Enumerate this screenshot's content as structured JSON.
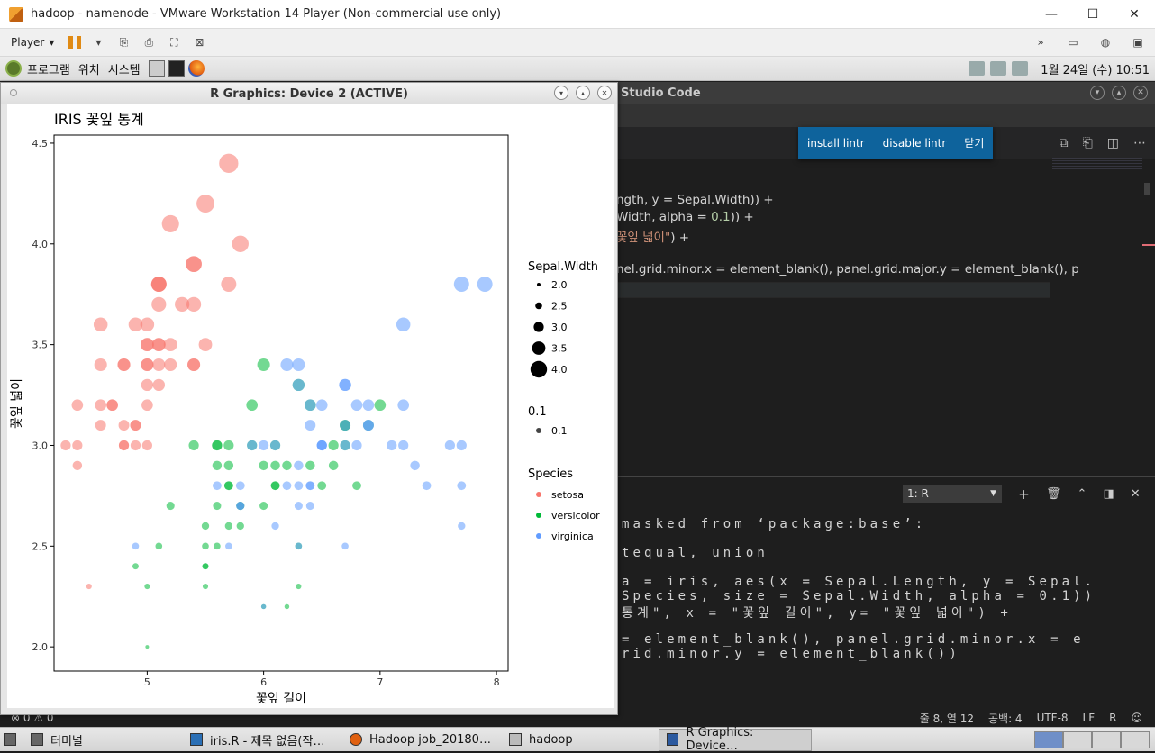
{
  "vmware": {
    "title": "hadoop - namenode - VMware Workstation 14 Player (Non-commercial use only)",
    "player_menu": "Player"
  },
  "gnome_panel": {
    "menus": [
      "프로그램",
      "위치",
      "시스템"
    ],
    "clock": "1월 24일 (수) 10:51"
  },
  "vscode": {
    "title": "Studio Code",
    "notification": [
      "install lintr",
      "disable lintr",
      "닫기"
    ],
    "code": {
      "line1": "ngth, y = Sepal.Width)) +",
      "line2_a": "Width, alpha = ",
      "line2_num": "0.1",
      "line2_b": ")) +",
      "line3_str": "꽃잎 넓이\"",
      "line3_b": ") +",
      "line4": "nel.grid.minor.x = element_blank(), panel.grid.major.y = element_blank(), p"
    },
    "terminal": {
      "selector": "1: R",
      "lines": [
        "masked from ‘package:base’:",
        "tequal, union",
        "a = iris, aes(x = Sepal.Length, y = Sepal.",
        "Species, size = Sepal.Width, alpha = 0.1))",
        "통계\", x = \"꽃잎 길이\", y= \"꽃잎 넓이\") +",
        "= element_blank(), panel.grid.minor.x = e",
        "rid.minor.y = element_blank())"
      ]
    },
    "status": {
      "problems": "⊗ 0 ⚠ 0",
      "position": "줄 8, 열 12",
      "spaces": "공백: 4",
      "encoding": "UTF-8",
      "eol": "LF",
      "language": "R"
    }
  },
  "taskbar": {
    "items": [
      {
        "label": "터미널"
      },
      {
        "label": "iris.R - 제목 없음(작…"
      },
      {
        "label": "Hadoop job_20180…"
      },
      {
        "label": "hadoop"
      },
      {
        "label": "R Graphics: Device…"
      }
    ]
  },
  "rwin": {
    "title": "R Graphics: Device 2 (ACTIVE)"
  },
  "chart_data": {
    "type": "scatter",
    "title": "IRIS 꽃잎 통계",
    "xlabel": "꽃잎 길이",
    "ylabel": "꽃잎 넓이",
    "xlim": [
      4.2,
      8.1
    ],
    "ylim": [
      1.88,
      4.54
    ],
    "xticks": [
      5,
      6,
      7,
      8
    ],
    "yticks": [
      2.0,
      2.5,
      3.0,
      3.5,
      4.0,
      4.5
    ],
    "ytick_labels": [
      "2.0",
      "2.5",
      "3.0",
      "3.5",
      "4.0",
      "4.5"
    ],
    "grid": false,
    "size_legend": {
      "title": "Sepal.Width",
      "labels": [
        "2.0",
        "2.5",
        "3.0",
        "3.5",
        "4.0"
      ]
    },
    "alpha_legend": {
      "title": "0.1",
      "labels": [
        "0.1"
      ]
    },
    "legend_title": "Species",
    "series": [
      {
        "name": "setosa",
        "color": "#F8766D",
        "points": [
          [
            5.1,
            3.5
          ],
          [
            4.9,
            3.0
          ],
          [
            4.7,
            3.2
          ],
          [
            4.6,
            3.1
          ],
          [
            5.0,
            3.6
          ],
          [
            5.4,
            3.9
          ],
          [
            4.6,
            3.4
          ],
          [
            5.0,
            3.4
          ],
          [
            4.4,
            2.9
          ],
          [
            4.9,
            3.1
          ],
          [
            5.4,
            3.7
          ],
          [
            4.8,
            3.4
          ],
          [
            4.8,
            3.0
          ],
          [
            4.3,
            3.0
          ],
          [
            5.8,
            4.0
          ],
          [
            5.7,
            4.4
          ],
          [
            5.4,
            3.9
          ],
          [
            5.1,
            3.5
          ],
          [
            5.7,
            3.8
          ],
          [
            5.1,
            3.8
          ],
          [
            5.4,
            3.4
          ],
          [
            5.1,
            3.7
          ],
          [
            4.6,
            3.6
          ],
          [
            5.1,
            3.3
          ],
          [
            4.8,
            3.4
          ],
          [
            5.0,
            3.0
          ],
          [
            5.0,
            3.4
          ],
          [
            5.2,
            3.5
          ],
          [
            5.2,
            3.4
          ],
          [
            4.7,
            3.2
          ],
          [
            4.8,
            3.1
          ],
          [
            5.4,
            3.4
          ],
          [
            5.2,
            4.1
          ],
          [
            5.5,
            4.2
          ],
          [
            4.9,
            3.1
          ],
          [
            5.0,
            3.2
          ],
          [
            5.5,
            3.5
          ],
          [
            4.9,
            3.6
          ],
          [
            4.4,
            3.0
          ],
          [
            5.1,
            3.4
          ],
          [
            5.0,
            3.5
          ],
          [
            4.5,
            2.3
          ],
          [
            4.4,
            3.2
          ],
          [
            5.0,
            3.5
          ],
          [
            5.1,
            3.8
          ],
          [
            4.8,
            3.0
          ],
          [
            5.1,
            3.8
          ],
          [
            4.6,
            3.2
          ],
          [
            5.3,
            3.7
          ],
          [
            5.0,
            3.3
          ]
        ]
      },
      {
        "name": "versicolor",
        "color": "#00BA38",
        "points": [
          [
            7.0,
            3.2
          ],
          [
            6.4,
            3.2
          ],
          [
            6.9,
            3.1
          ],
          [
            5.5,
            2.3
          ],
          [
            6.5,
            2.8
          ],
          [
            5.7,
            2.8
          ],
          [
            6.3,
            3.3
          ],
          [
            4.9,
            2.4
          ],
          [
            6.6,
            2.9
          ],
          [
            5.2,
            2.7
          ],
          [
            5.0,
            2.0
          ],
          [
            5.9,
            3.0
          ],
          [
            6.0,
            2.2
          ],
          [
            6.1,
            2.9
          ],
          [
            5.6,
            2.9
          ],
          [
            6.7,
            3.1
          ],
          [
            5.6,
            3.0
          ],
          [
            5.8,
            2.7
          ],
          [
            6.2,
            2.2
          ],
          [
            5.6,
            2.5
          ],
          [
            5.9,
            3.2
          ],
          [
            6.1,
            2.8
          ],
          [
            6.3,
            2.5
          ],
          [
            6.1,
            2.8
          ],
          [
            6.4,
            2.9
          ],
          [
            6.6,
            3.0
          ],
          [
            6.8,
            2.8
          ],
          [
            6.7,
            3.0
          ],
          [
            6.0,
            2.9
          ],
          [
            5.7,
            2.6
          ],
          [
            5.5,
            2.4
          ],
          [
            5.5,
            2.4
          ],
          [
            5.8,
            2.7
          ],
          [
            6.0,
            2.7
          ],
          [
            5.4,
            3.0
          ],
          [
            6.0,
            3.4
          ],
          [
            6.7,
            3.1
          ],
          [
            6.3,
            2.3
          ],
          [
            5.6,
            3.0
          ],
          [
            5.5,
            2.5
          ],
          [
            5.5,
            2.6
          ],
          [
            6.1,
            3.0
          ],
          [
            5.8,
            2.6
          ],
          [
            5.0,
            2.3
          ],
          [
            5.6,
            2.7
          ],
          [
            5.7,
            3.0
          ],
          [
            5.7,
            2.9
          ],
          [
            6.2,
            2.9
          ],
          [
            5.1,
            2.5
          ],
          [
            5.7,
            2.8
          ]
        ]
      },
      {
        "name": "virginica",
        "color": "#619CFF",
        "points": [
          [
            6.3,
            3.3
          ],
          [
            5.8,
            2.7
          ],
          [
            7.1,
            3.0
          ],
          [
            6.3,
            2.9
          ],
          [
            6.5,
            3.0
          ],
          [
            7.6,
            3.0
          ],
          [
            4.9,
            2.5
          ],
          [
            7.3,
            2.9
          ],
          [
            6.7,
            2.5
          ],
          [
            7.2,
            3.6
          ],
          [
            6.5,
            3.2
          ],
          [
            6.4,
            2.7
          ],
          [
            6.8,
            3.0
          ],
          [
            5.7,
            2.5
          ],
          [
            5.8,
            2.8
          ],
          [
            6.4,
            3.2
          ],
          [
            6.5,
            3.0
          ],
          [
            7.7,
            3.8
          ],
          [
            7.7,
            2.6
          ],
          [
            6.0,
            2.2
          ],
          [
            6.9,
            3.2
          ],
          [
            5.6,
            2.8
          ],
          [
            7.7,
            2.8
          ],
          [
            6.3,
            2.7
          ],
          [
            6.7,
            3.3
          ],
          [
            7.2,
            3.2
          ],
          [
            6.2,
            2.8
          ],
          [
            6.1,
            3.0
          ],
          [
            6.4,
            2.8
          ],
          [
            7.2,
            3.0
          ],
          [
            7.4,
            2.8
          ],
          [
            7.9,
            3.8
          ],
          [
            6.4,
            2.8
          ],
          [
            6.3,
            2.8
          ],
          [
            6.1,
            2.6
          ],
          [
            7.7,
            3.0
          ],
          [
            6.3,
            3.4
          ],
          [
            6.4,
            3.1
          ],
          [
            6.0,
            3.0
          ],
          [
            6.9,
            3.1
          ],
          [
            6.7,
            3.1
          ],
          [
            6.9,
            3.1
          ],
          [
            5.8,
            2.7
          ],
          [
            6.8,
            3.2
          ],
          [
            6.7,
            3.3
          ],
          [
            6.7,
            3.0
          ],
          [
            6.3,
            2.5
          ],
          [
            6.5,
            3.0
          ],
          [
            6.2,
            3.4
          ],
          [
            5.9,
            3.0
          ]
        ]
      }
    ]
  }
}
